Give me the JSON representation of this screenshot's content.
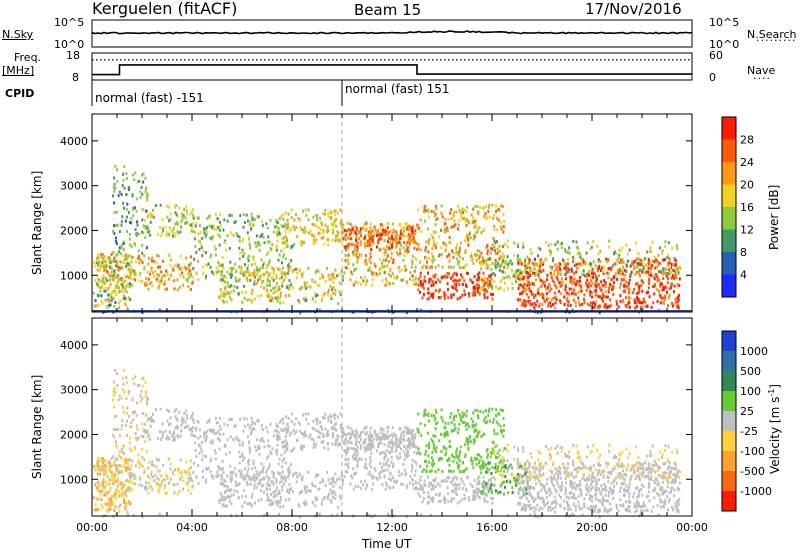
{
  "header": {
    "station": "Kerguelen (fitACF)",
    "beam": "Beam 15",
    "date": "17/Nov/2016"
  },
  "noise_panel": {
    "left_label": "N.Sky",
    "right_label": "N.Search",
    "left_ticks": [
      "10^5",
      "10^0"
    ],
    "right_ticks": [
      "10^5",
      "10^0"
    ]
  },
  "freq_panel": {
    "left_label_1": "Freq.",
    "left_label_2": "[MHz]",
    "right_label": "Nave",
    "left_ticks": [
      "18",
      "8"
    ],
    "right_ticks": [
      "60",
      "0"
    ],
    "cpid_label": "CPID",
    "cpid_segments": [
      {
        "start_hour": 0.0,
        "label": "normal (fast) -151"
      },
      {
        "start_hour": 10.0,
        "label": "normal (fast) 151"
      }
    ],
    "freq_steps": [
      {
        "t": 0,
        "v": 10
      },
      {
        "t": 1.1,
        "v": 10
      },
      {
        "t": 1.1,
        "v": 13.6
      },
      {
        "t": 13.0,
        "v": 13.6
      },
      {
        "t": 13.0,
        "v": 10.2
      },
      {
        "t": 24,
        "v": 10.2
      }
    ],
    "nave_level": 45
  },
  "chart_data": [
    {
      "type": "heatmap",
      "name": "power",
      "ylabel": "Slant Range [km]",
      "yticks": [
        1000,
        2000,
        3000,
        4000
      ],
      "ylim": [
        180,
        4600
      ],
      "xlim": [
        0,
        24
      ],
      "colorbar_label": "Power [dB]",
      "colorbar_ticks": [
        4,
        8,
        12,
        16,
        20,
        24,
        28
      ],
      "colorbar_range": [
        0,
        32
      ],
      "colors": [
        "#1f2aff",
        "#2a5fb8",
        "#3f9a6a",
        "#8ecb3a",
        "#f2d21a",
        "#ff9a10",
        "#ff5a08",
        "#ff1a00"
      ]
    },
    {
      "type": "heatmap",
      "name": "velocity",
      "ylabel": "Slant Range [km]",
      "xlabel": "Time UT",
      "yticks": [
        1000,
        2000,
        3000,
        4000
      ],
      "ylim": [
        180,
        4600
      ],
      "xlim": [
        0,
        24
      ],
      "xticks": [
        "00:00",
        "04:00",
        "08:00",
        "12:00",
        "16:00",
        "20:00",
        "00:00"
      ],
      "colorbar_label": "Velocity [m s-1]",
      "colorbar_ticks": [
        "1000",
        "500",
        "100",
        "25",
        "-25",
        "-100",
        "-500",
        "-1000"
      ],
      "colors": [
        "#1f3fd6",
        "#2f70a8",
        "#2f8a5a",
        "#66cc33",
        "#bfbfbf",
        "#ffd23a",
        "#ffa030",
        "#ff6a10",
        "#ff1a00"
      ]
    }
  ]
}
